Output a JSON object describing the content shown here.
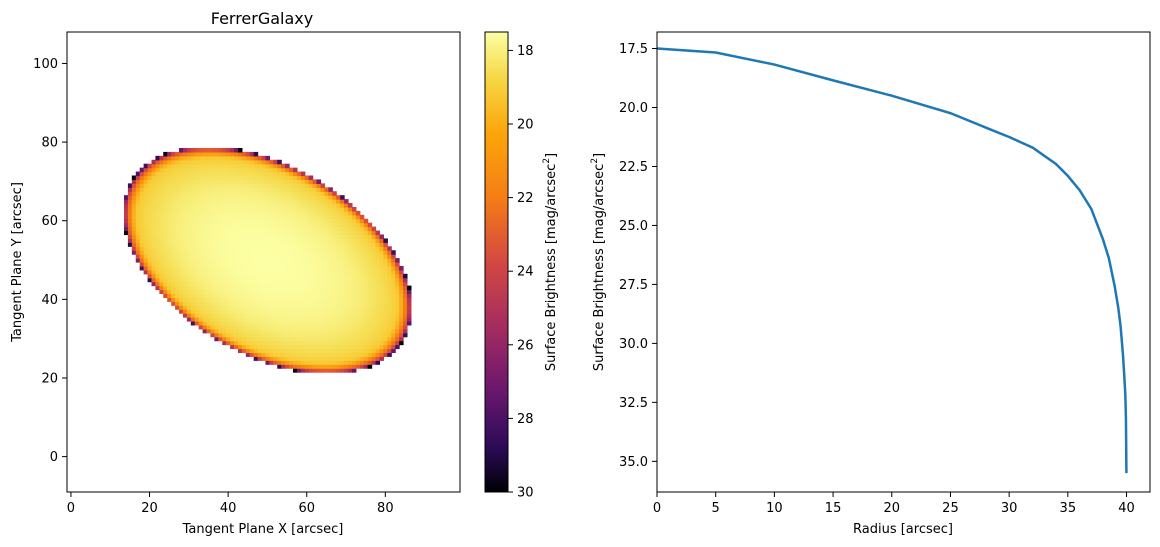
{
  "chart_data": [
    {
      "type": "heatmap",
      "title": "FerrerGalaxy",
      "xlabel": "Tangent Plane X [arcsec]",
      "ylabel": "Tangent Plane Y [arcsec]",
      "xlim": [
        -1,
        99
      ],
      "ylim": [
        -9,
        108
      ],
      "xticks": [
        0,
        20,
        40,
        60,
        80
      ],
      "yticks": [
        0,
        20,
        40,
        60,
        80,
        100
      ],
      "colormap": "inferno",
      "ellipse": {
        "center": [
          50,
          50
        ],
        "semi_major": 40,
        "axis_ratio": 0.6,
        "position_angle_deg": 150,
        "index": 2
      },
      "colorbar": {
        "label": "Surface Brightness [mag/arcsec",
        "label_sup": "2",
        "label_end": "]",
        "vmin": 17.5,
        "vmax": 30,
        "ticks": [
          18,
          20,
          22,
          24,
          26,
          28,
          30
        ],
        "reversed": true
      }
    },
    {
      "type": "line",
      "xlabel": "Radius [arcsec]",
      "ylabel": "Surface Brightness [mag/arcsec",
      "ylabel_sup": "2",
      "ylabel_end": "]",
      "xlim": [
        0,
        42
      ],
      "ylim": [
        36.3,
        16.8
      ],
      "y_inverted": true,
      "xticks": [
        0,
        5,
        10,
        15,
        20,
        25,
        30,
        35,
        40
      ],
      "yticks": [
        17.5,
        20.0,
        22.5,
        25.0,
        27.5,
        30.0,
        32.5,
        35.0
      ],
      "series": [
        {
          "color": "#1f77b4",
          "x": [
            0,
            5,
            10,
            15,
            20,
            25,
            28,
            30,
            32,
            34,
            35,
            36,
            37,
            38,
            38.5,
            39,
            39.3,
            39.5,
            39.7,
            39.8,
            39.9,
            39.95,
            39.99
          ],
          "y": [
            17.5,
            17.67,
            18.18,
            18.85,
            19.5,
            20.24,
            20.85,
            21.25,
            21.7,
            22.4,
            22.9,
            23.5,
            24.3,
            25.6,
            26.4,
            27.6,
            28.5,
            29.3,
            30.5,
            31.3,
            32.2,
            33.2,
            35.5
          ]
        }
      ]
    }
  ]
}
